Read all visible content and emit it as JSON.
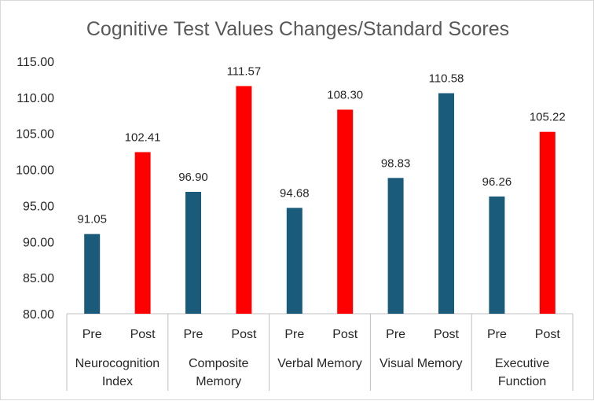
{
  "chart_data": {
    "type": "bar",
    "title": "Cognitive Test Values Changes/Standard Scores",
    "xlabel": "",
    "ylabel": "",
    "ylim": [
      80,
      115
    ],
    "y_ticks": [
      "80.00",
      "85.00",
      "90.00",
      "95.00",
      "100.00",
      "105.00",
      "110.00",
      "115.00"
    ],
    "grid": false,
    "groups": [
      {
        "category": [
          "Neurocognition",
          "Index"
        ],
        "bars": [
          {
            "label": "Pre",
            "value": 91.05,
            "display": "91.05"
          },
          {
            "label": "Post",
            "value": 102.41,
            "display": "102.41"
          }
        ]
      },
      {
        "category": [
          "Composite",
          "Memory"
        ],
        "bars": [
          {
            "label": "Pre",
            "value": 96.9,
            "display": "96.90"
          },
          {
            "label": "Post",
            "value": 111.57,
            "display": "111.57"
          }
        ]
      },
      {
        "category": [
          "Verbal Memory"
        ],
        "bars": [
          {
            "label": "Pre",
            "value": 94.68,
            "display": "94.68"
          },
          {
            "label": "Post",
            "value": 108.3,
            "display": "108.30"
          }
        ]
      },
      {
        "category": [
          "Visual Memory"
        ],
        "bars": [
          {
            "label": "Pre",
            "value": 98.83,
            "display": "98.83"
          },
          {
            "label": "Post",
            "value": 110.58,
            "display": "110.58"
          }
        ]
      },
      {
        "category": [
          "Executive",
          "Function"
        ],
        "bars": [
          {
            "label": "Pre",
            "value": 96.26,
            "display": "96.26"
          },
          {
            "label": "Post",
            "value": 105.22,
            "display": "105.22"
          }
        ]
      }
    ],
    "colors": [
      "#1a5b7c",
      "#1a5b7c",
      "#1a5b7c",
      "#1a5b7c",
      "#1a5b7c",
      "#1a5b7c",
      "#ff0000",
      "#ff0000",
      "#ff0000",
      "#ff0000"
    ],
    "bar_colors": {
      "0": [
        "#1a5b7c",
        "#ff0000"
      ],
      "1": [
        "#1a5b7c",
        "#ff0000"
      ],
      "2": [
        "#1a5b7c",
        "#ff0000"
      ],
      "3": [
        "#1a5b7c",
        "#1a5b7c"
      ],
      "4": [
        "#1a5b7c",
        "#ff0000"
      ]
    }
  }
}
